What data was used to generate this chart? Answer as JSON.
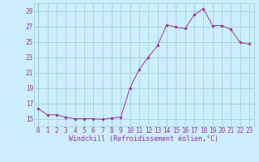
{
  "x": [
    0,
    1,
    2,
    3,
    4,
    5,
    6,
    7,
    8,
    9,
    10,
    11,
    12,
    13,
    14,
    15,
    16,
    17,
    18,
    19,
    20,
    21,
    22,
    23
  ],
  "y": [
    16.3,
    15.5,
    15.5,
    15.2,
    15.0,
    15.0,
    15.0,
    14.9,
    15.1,
    15.2,
    19.0,
    21.4,
    23.0,
    24.5,
    27.2,
    26.9,
    26.7,
    28.5,
    29.3,
    27.1,
    27.1,
    26.6,
    24.9,
    24.7
  ],
  "line_color": "#993399",
  "marker": "D",
  "marker_size": 1.8,
  "bg_color": "#cceeff",
  "grid_color": "#99cccc",
  "tick_color": "#993399",
  "label_color": "#993399",
  "xlabel": "Windchill (Refroidissement éolien,°C)",
  "ylim": [
    14.0,
    30.0
  ],
  "yticks": [
    15,
    17,
    19,
    21,
    23,
    25,
    27,
    29
  ],
  "xticks": [
    0,
    1,
    2,
    3,
    4,
    5,
    6,
    7,
    8,
    9,
    10,
    11,
    12,
    13,
    14,
    15,
    16,
    17,
    18,
    19,
    20,
    21,
    22,
    23
  ],
  "tick_fontsize": 5.5,
  "label_fontsize": 6.0,
  "linewidth": 0.7
}
